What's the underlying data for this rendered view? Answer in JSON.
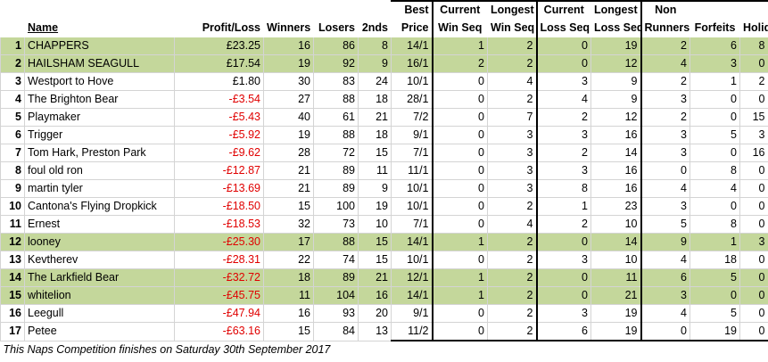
{
  "headers": {
    "row1": {
      "best": "Best",
      "cur_win": "Current",
      "long_win": "Longest",
      "cur_loss": "Current",
      "long_loss": "Longest",
      "non": "Non"
    },
    "row2": {
      "name": "Name",
      "pl": "Profit/Loss",
      "winners": "Winners",
      "losers": "Losers",
      "seconds": "2nds",
      "best": "Price",
      "cur_win": "Win Seq",
      "long_win": "Win Seq",
      "cur_loss": "Loss Seq",
      "long_loss": "Loss Seq",
      "non": "Runners",
      "forfeits": "Forfeits",
      "holiday": "Holiday"
    }
  },
  "rows": [
    {
      "n": "1",
      "name": "CHAPPERS",
      "pl": "£23.25",
      "w": "16",
      "l": "86",
      "s": "8",
      "bp": "14/1",
      "cw": "1",
      "lw": "2",
      "cl": "0",
      "ll": "19",
      "nr": "2",
      "f": "6",
      "h": "8",
      "hl": true,
      "neg": false
    },
    {
      "n": "2",
      "name": "HAILSHAM SEAGULL",
      "pl": "£17.54",
      "w": "19",
      "l": "92",
      "s": "9",
      "bp": "16/1",
      "cw": "2",
      "lw": "2",
      "cl": "0",
      "ll": "12",
      "nr": "4",
      "f": "3",
      "h": "0",
      "hl": true,
      "neg": false
    },
    {
      "n": "3",
      "name": "Westport to Hove",
      "pl": "£1.80",
      "w": "30",
      "l": "83",
      "s": "24",
      "bp": "10/1",
      "cw": "0",
      "lw": "4",
      "cl": "3",
      "ll": "9",
      "nr": "2",
      "f": "1",
      "h": "2",
      "hl": false,
      "neg": false
    },
    {
      "n": "4",
      "name": "The Brighton Bear",
      "pl": "-£3.54",
      "w": "27",
      "l": "88",
      "s": "18",
      "bp": "28/1",
      "cw": "0",
      "lw": "2",
      "cl": "4",
      "ll": "9",
      "nr": "3",
      "f": "0",
      "h": "0",
      "hl": false,
      "neg": true
    },
    {
      "n": "5",
      "name": "Playmaker",
      "pl": "-£5.43",
      "w": "40",
      "l": "61",
      "s": "21",
      "bp": "7/2",
      "cw": "0",
      "lw": "7",
      "cl": "2",
      "ll": "12",
      "nr": "2",
      "f": "0",
      "h": "15",
      "hl": false,
      "neg": true
    },
    {
      "n": "6",
      "name": "Trigger",
      "pl": "-£5.92",
      "w": "19",
      "l": "88",
      "s": "18",
      "bp": "9/1",
      "cw": "0",
      "lw": "3",
      "cl": "3",
      "ll": "16",
      "nr": "3",
      "f": "5",
      "h": "3",
      "hl": false,
      "neg": true
    },
    {
      "n": "7",
      "name": "Tom Hark, Preston Park",
      "pl": "-£9.62",
      "w": "28",
      "l": "72",
      "s": "15",
      "bp": "7/1",
      "cw": "0",
      "lw": "3",
      "cl": "2",
      "ll": "14",
      "nr": "3",
      "f": "0",
      "h": "16",
      "hl": false,
      "neg": true
    },
    {
      "n": "8",
      "name": "foul old ron",
      "pl": "-£12.87",
      "w": "21",
      "l": "89",
      "s": "11",
      "bp": "11/1",
      "cw": "0",
      "lw": "3",
      "cl": "3",
      "ll": "16",
      "nr": "0",
      "f": "8",
      "h": "0",
      "hl": false,
      "neg": true
    },
    {
      "n": "9",
      "name": "martin tyler",
      "pl": "-£13.69",
      "w": "21",
      "l": "89",
      "s": "9",
      "bp": "10/1",
      "cw": "0",
      "lw": "3",
      "cl": "8",
      "ll": "16",
      "nr": "4",
      "f": "4",
      "h": "0",
      "hl": false,
      "neg": true
    },
    {
      "n": "10",
      "name": "Cantona's Flying Dropkick",
      "pl": "-£18.50",
      "w": "15",
      "l": "100",
      "s": "19",
      "bp": "10/1",
      "cw": "0",
      "lw": "2",
      "cl": "1",
      "ll": "23",
      "nr": "3",
      "f": "0",
      "h": "0",
      "hl": false,
      "neg": true
    },
    {
      "n": "11",
      "name": "Ernest",
      "pl": "-£18.53",
      "w": "32",
      "l": "73",
      "s": "10",
      "bp": "7/1",
      "cw": "0",
      "lw": "4",
      "cl": "2",
      "ll": "10",
      "nr": "5",
      "f": "8",
      "h": "0",
      "hl": false,
      "neg": true
    },
    {
      "n": "12",
      "name": "looney",
      "pl": "-£25.30",
      "w": "17",
      "l": "88",
      "s": "15",
      "bp": "14/1",
      "cw": "1",
      "lw": "2",
      "cl": "0",
      "ll": "14",
      "nr": "9",
      "f": "1",
      "h": "3",
      "hl": true,
      "neg": true
    },
    {
      "n": "13",
      "name": "Kevtherev",
      "pl": "-£28.31",
      "w": "22",
      "l": "74",
      "s": "15",
      "bp": "10/1",
      "cw": "0",
      "lw": "2",
      "cl": "3",
      "ll": "10",
      "nr": "4",
      "f": "18",
      "h": "0",
      "hl": false,
      "neg": true
    },
    {
      "n": "14",
      "name": "The Larkfield Bear",
      "pl": "-£32.72",
      "w": "18",
      "l": "89",
      "s": "21",
      "bp": "12/1",
      "cw": "1",
      "lw": "2",
      "cl": "0",
      "ll": "11",
      "nr": "6",
      "f": "5",
      "h": "0",
      "hl": true,
      "neg": true
    },
    {
      "n": "15",
      "name": "whitelion",
      "pl": "-£45.75",
      "w": "11",
      "l": "104",
      "s": "16",
      "bp": "14/1",
      "cw": "1",
      "lw": "2",
      "cl": "0",
      "ll": "21",
      "nr": "3",
      "f": "0",
      "h": "0",
      "hl": true,
      "neg": true
    },
    {
      "n": "16",
      "name": "Leegull",
      "pl": "-£47.94",
      "w": "16",
      "l": "93",
      "s": "20",
      "bp": "9/1",
      "cw": "0",
      "lw": "2",
      "cl": "3",
      "ll": "19",
      "nr": "4",
      "f": "5",
      "h": "0",
      "hl": false,
      "neg": true
    },
    {
      "n": "17",
      "name": "Petee",
      "pl": "-£63.16",
      "w": "15",
      "l": "84",
      "s": "13",
      "bp": "11/2",
      "cw": "0",
      "lw": "2",
      "cl": "6",
      "ll": "19",
      "nr": "0",
      "f": "19",
      "h": "0",
      "hl": false,
      "neg": true
    }
  ],
  "footer": "This Naps Competition finishes on Saturday 30th September 2017",
  "colors": {
    "highlight": "#c4d79b",
    "negative": "#e00000",
    "grid": "#d4d4d4"
  }
}
